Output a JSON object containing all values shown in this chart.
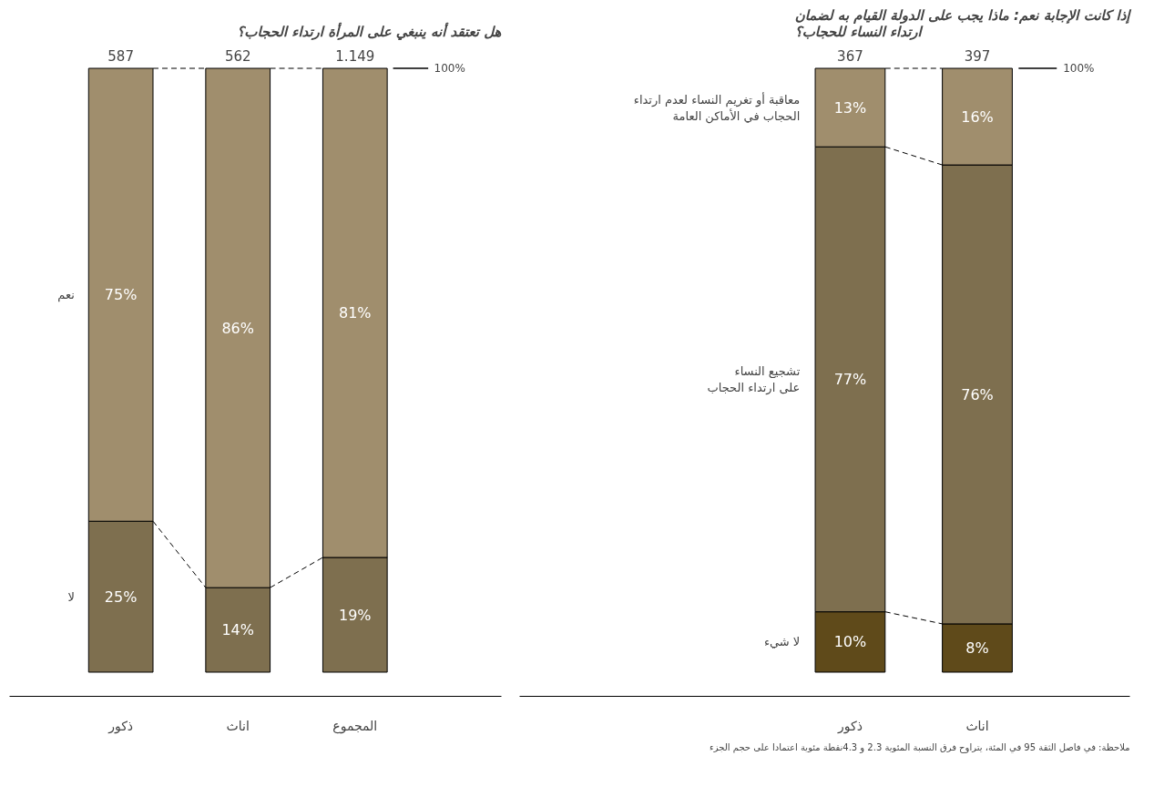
{
  "chart_data": [
    {
      "type": "bar",
      "title": "هل تعتقد أنه ينبغي على المرأة ارتداء الحجاب؟",
      "categories": [
        "ذكور",
        "اناث",
        "المجموع"
      ],
      "stacked": true,
      "tick_labels": "x",
      "grid": false,
      "legend": false,
      "series": [
        {
          "name": "لا",
          "color": "#7e6f4f",
          "values": [
            25,
            14,
            19
          ],
          "value_labels": [
            "25%",
            "14%",
            "19%"
          ]
        },
        {
          "name": "نعم",
          "color": "#a08e6d",
          "values": [
            75,
            86,
            81
          ],
          "value_labels": [
            "75%",
            "86%",
            "81%"
          ]
        }
      ],
      "annotations": [
        {
          "text": "587",
          "x": "ذكور",
          "y": 100
        },
        {
          "text": "562",
          "x": "اناث",
          "y": 100
        },
        {
          "text": "1.149",
          "x": "المجموع",
          "y": 100
        },
        "100%"
      ]
    },
    {
      "type": "bar",
      "title": "إذا كانت الإجابة نعم: ماذا يجب على الدولة القيام به لضمان\nارتداء النساء للحجاب؟",
      "categories": [
        "ذكور",
        "اناث"
      ],
      "stacked": true,
      "tick_labels": "x",
      "grid": false,
      "legend": false,
      "series": [
        {
          "name": "لا شيء",
          "color": "#5f4a1a",
          "values": [
            10,
            8
          ],
          "value_labels": [
            "10%",
            "8%"
          ]
        },
        {
          "name": "تشجيع النساء\nعلى ارتداء الحجاب",
          "color": "#7e6f4f",
          "values": [
            77,
            76
          ],
          "value_labels": [
            "77%",
            "76%"
          ]
        },
        {
          "name": "معاقبة أو تغريم النساء لعدم ارتداء\nالحجاب في الأماكن العامة",
          "color": "#a08e6d",
          "values": [
            13,
            16
          ],
          "value_labels": [
            "13%",
            "16%"
          ]
        }
      ],
      "annotations": [
        {
          "text": "367",
          "x": "ذكور",
          "y": 100
        },
        {
          "text": "397",
          "x": "اناث",
          "y": 100
        },
        "100%",
        "ملاحظة: في فاصل الثقة 95 في المئة، يتراوح فرق النسبة المئوية 2.3 و 4.3نقطة مئوية اعتمادا على حجم الجزء"
      ]
    }
  ]
}
